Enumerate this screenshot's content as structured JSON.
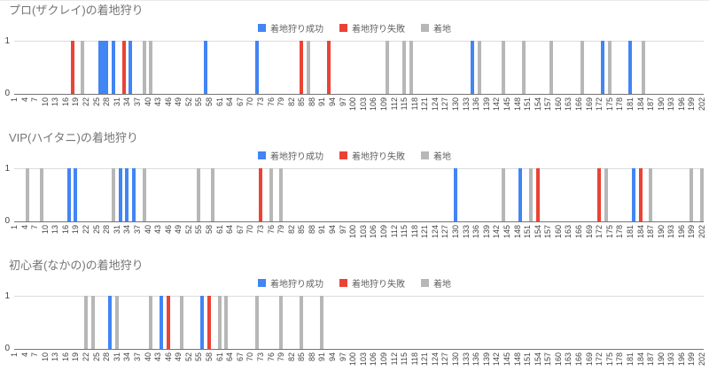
{
  "chart_data": {
    "type": "bar",
    "ylim": [
      0,
      1
    ],
    "bar_value": 1,
    "y_ticks": [
      1,
      0
    ],
    "x_ticks": [
      1,
      4,
      7,
      10,
      13,
      16,
      19,
      22,
      25,
      28,
      31,
      34,
      37,
      40,
      43,
      46,
      49,
      52,
      55,
      58,
      61,
      64,
      67,
      70,
      73,
      76,
      79,
      82,
      85,
      88,
      91,
      94,
      97,
      100,
      103,
      106,
      109,
      112,
      115,
      118,
      121,
      124,
      127,
      130,
      133,
      136,
      139,
      142,
      145,
      148,
      151,
      154,
      157,
      160,
      163,
      166,
      169,
      172,
      175,
      178,
      181,
      184,
      187,
      190,
      193,
      196,
      199,
      202
    ],
    "legend_position": "top-center",
    "grid": "horizontal lines at y=0 (baseline) and y=1",
    "series_colors": {
      "success": "#4285f4",
      "fail": "#ea4335",
      "land": "#b7b7b7"
    },
    "legend": [
      {
        "key": "success",
        "label": "着地狩り成功",
        "color": "#4285f4"
      },
      {
        "key": "fail",
        "label": "着地狩り失敗",
        "color": "#ea4335"
      },
      {
        "key": "land",
        "label": "着地",
        "color": "#b7b7b7"
      }
    ],
    "charts": [
      {
        "title": "プロ(ザクレイ)の着地狩り",
        "bars": [
          {
            "x": 18,
            "t": "fail"
          },
          {
            "x": 21,
            "t": "land"
          },
          {
            "x": 26,
            "t": "success"
          },
          {
            "x": 27,
            "t": "success"
          },
          {
            "x": 28,
            "t": "success"
          },
          {
            "x": 30,
            "t": "success"
          },
          {
            "x": 33,
            "t": "fail"
          },
          {
            "x": 35,
            "t": "success"
          },
          {
            "x": 39,
            "t": "land"
          },
          {
            "x": 41,
            "t": "land"
          },
          {
            "x": 57,
            "t": "success"
          },
          {
            "x": 72,
            "t": "success"
          },
          {
            "x": 85,
            "t": "fail"
          },
          {
            "x": 87,
            "t": "land"
          },
          {
            "x": 93,
            "t": "fail"
          },
          {
            "x": 110,
            "t": "land"
          },
          {
            "x": 115,
            "t": "land"
          },
          {
            "x": 117,
            "t": "land"
          },
          {
            "x": 135,
            "t": "success"
          },
          {
            "x": 137,
            "t": "land"
          },
          {
            "x": 144,
            "t": "land"
          },
          {
            "x": 150,
            "t": "land"
          },
          {
            "x": 158,
            "t": "land"
          },
          {
            "x": 167,
            "t": "land"
          },
          {
            "x": 173,
            "t": "success"
          },
          {
            "x": 175,
            "t": "land"
          },
          {
            "x": 181,
            "t": "success"
          },
          {
            "x": 185,
            "t": "land"
          }
        ]
      },
      {
        "title": "VIP(ハイタニ)の着地狩り",
        "bars": [
          {
            "x": 5,
            "t": "land"
          },
          {
            "x": 9,
            "t": "land"
          },
          {
            "x": 17,
            "t": "success"
          },
          {
            "x": 19,
            "t": "success"
          },
          {
            "x": 30,
            "t": "land"
          },
          {
            "x": 32,
            "t": "success"
          },
          {
            "x": 34,
            "t": "success"
          },
          {
            "x": 36,
            "t": "success"
          },
          {
            "x": 39,
            "t": "land"
          },
          {
            "x": 55,
            "t": "land"
          },
          {
            "x": 59,
            "t": "land"
          },
          {
            "x": 73,
            "t": "fail"
          },
          {
            "x": 76,
            "t": "land"
          },
          {
            "x": 79,
            "t": "land"
          },
          {
            "x": 130,
            "t": "success"
          },
          {
            "x": 144,
            "t": "land"
          },
          {
            "x": 149,
            "t": "success"
          },
          {
            "x": 152,
            "t": "land"
          },
          {
            "x": 154,
            "t": "fail"
          },
          {
            "x": 172,
            "t": "fail"
          },
          {
            "x": 174,
            "t": "land"
          },
          {
            "x": 182,
            "t": "success"
          },
          {
            "x": 184,
            "t": "fail"
          },
          {
            "x": 187,
            "t": "land"
          },
          {
            "x": 199,
            "t": "land"
          },
          {
            "x": 202,
            "t": "land"
          }
        ]
      },
      {
        "title": "初心者(なかの)の着地狩り",
        "bars": [
          {
            "x": 22,
            "t": "land"
          },
          {
            "x": 24,
            "t": "land"
          },
          {
            "x": 29,
            "t": "success"
          },
          {
            "x": 31,
            "t": "land"
          },
          {
            "x": 41,
            "t": "land"
          },
          {
            "x": 44,
            "t": "success"
          },
          {
            "x": 46,
            "t": "fail"
          },
          {
            "x": 50,
            "t": "land"
          },
          {
            "x": 56,
            "t": "success"
          },
          {
            "x": 58,
            "t": "fail"
          },
          {
            "x": 61,
            "t": "land"
          },
          {
            "x": 63,
            "t": "land"
          },
          {
            "x": 72,
            "t": "land"
          },
          {
            "x": 79,
            "t": "land"
          },
          {
            "x": 85,
            "t": "land"
          },
          {
            "x": 91,
            "t": "land"
          }
        ]
      }
    ]
  }
}
